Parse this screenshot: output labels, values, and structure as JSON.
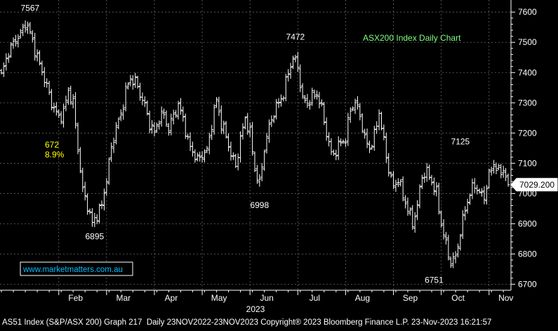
{
  "chart_data": {
    "type": "ohlc",
    "title": "ASX200 Index Daily Chart",
    "watermark": "www.marketmatters.com.au",
    "year_label": "2023",
    "footer": "AS51 Index (S&P/ASX 200) Graph 217  Daily 23NOV2022-23NOV2023 Copyright® 2023 Bloomberg Finance L.P. 23-Nov-2023 16:21:57",
    "ylim": [
      6680,
      7640
    ],
    "y_ticks": [
      6700,
      6800,
      6900,
      7000,
      7100,
      7200,
      7300,
      7400,
      7500,
      7600
    ],
    "x_months": [
      {
        "label": "Feb",
        "index": 24
      },
      {
        "label": "Mar",
        "index": 44
      },
      {
        "label": "Apr",
        "index": 64
      },
      {
        "label": "May",
        "index": 84
      },
      {
        "label": "Jun",
        "index": 104
      },
      {
        "label": "Jul",
        "index": 124
      },
      {
        "label": "Aug",
        "index": 144
      },
      {
        "label": "Sep",
        "index": 164
      },
      {
        "label": "Oct",
        "index": 184
      },
      {
        "label": "Nov",
        "index": 204
      }
    ],
    "current_price": "7029.200",
    "current_value": 7029.2,
    "annotations": [
      {
        "text": "7567",
        "index": 12,
        "value": 7567
      },
      {
        "text": "7472",
        "index": 123,
        "value": 7472
      },
      {
        "text": "6895",
        "index": 39,
        "value": 6895
      },
      {
        "text": "6998",
        "index": 108,
        "value": 6998
      },
      {
        "text": "6751",
        "index": 181,
        "value": 6751
      },
      {
        "text": "7125",
        "index": 192,
        "value": 7125
      }
    ],
    "drawdown": {
      "points": "672",
      "percent": "8.9%"
    },
    "anchors": [
      [
        0,
        7390
      ],
      [
        3,
        7470
      ],
      [
        6,
        7510
      ],
      [
        9,
        7540
      ],
      [
        10,
        7567
      ],
      [
        12,
        7530
      ],
      [
        15,
        7450
      ],
      [
        18,
        7380
      ],
      [
        21,
        7300
      ],
      [
        24,
        7250
      ],
      [
        26,
        7270
      ],
      [
        28,
        7340
      ],
      [
        30,
        7300
      ],
      [
        32,
        7150
      ],
      [
        34,
        7010
      ],
      [
        36,
        6960
      ],
      [
        38,
        6900
      ],
      [
        40,
        6930
      ],
      [
        42,
        6960
      ],
      [
        44,
        7050
      ],
      [
        46,
        7150
      ],
      [
        48,
        7220
      ],
      [
        50,
        7260
      ],
      [
        52,
        7340
      ],
      [
        54,
        7380
      ],
      [
        56,
        7370
      ],
      [
        58,
        7330
      ],
      [
        60,
        7290
      ],
      [
        62,
        7230
      ],
      [
        64,
        7200
      ],
      [
        66,
        7250
      ],
      [
        68,
        7260
      ],
      [
        70,
        7210
      ],
      [
        72,
        7260
      ],
      [
        74,
        7290
      ],
      [
        76,
        7250
      ],
      [
        78,
        7170
      ],
      [
        80,
        7140
      ],
      [
        82,
        7110
      ],
      [
        84,
        7130
      ],
      [
        86,
        7140
      ],
      [
        88,
        7230
      ],
      [
        90,
        7310
      ],
      [
        92,
        7230
      ],
      [
        94,
        7190
      ],
      [
        96,
        7130
      ],
      [
        98,
        7090
      ],
      [
        100,
        7180
      ],
      [
        102,
        7250
      ],
      [
        104,
        7200
      ],
      [
        106,
        7080
      ],
      [
        108,
        7030
      ],
      [
        110,
        7150
      ],
      [
        112,
        7220
      ],
      [
        114,
        7270
      ],
      [
        116,
        7300
      ],
      [
        118,
        7330
      ],
      [
        120,
        7400
      ],
      [
        122,
        7450
      ],
      [
        124,
        7420
      ],
      [
        126,
        7310
      ],
      [
        128,
        7300
      ],
      [
        130,
        7320
      ],
      [
        132,
        7330
      ],
      [
        134,
        7280
      ],
      [
        136,
        7200
      ],
      [
        138,
        7130
      ],
      [
        140,
        7140
      ],
      [
        142,
        7170
      ],
      [
        144,
        7180
      ],
      [
        146,
        7280
      ],
      [
        148,
        7300
      ],
      [
        150,
        7260
      ],
      [
        152,
        7180
      ],
      [
        154,
        7150
      ],
      [
        156,
        7190
      ],
      [
        158,
        7270
      ],
      [
        160,
        7170
      ],
      [
        162,
        7080
      ],
      [
        164,
        7020
      ],
      [
        166,
        7050
      ],
      [
        168,
        6990
      ],
      [
        170,
        6950
      ],
      [
        172,
        6900
      ],
      [
        174,
        6960
      ],
      [
        176,
        7060
      ],
      [
        178,
        7070
      ],
      [
        180,
        7040
      ],
      [
        182,
        7000
      ],
      [
        184,
        6900
      ],
      [
        186,
        6830
      ],
      [
        188,
        6770
      ],
      [
        190,
        6790
      ],
      [
        192,
        6870
      ],
      [
        194,
        6950
      ],
      [
        196,
        7000
      ],
      [
        198,
        7030
      ],
      [
        200,
        7000
      ],
      [
        202,
        6990
      ],
      [
        204,
        7060
      ],
      [
        206,
        7100
      ],
      [
        208,
        7070
      ],
      [
        210,
        7080
      ],
      [
        212,
        7029
      ]
    ]
  }
}
